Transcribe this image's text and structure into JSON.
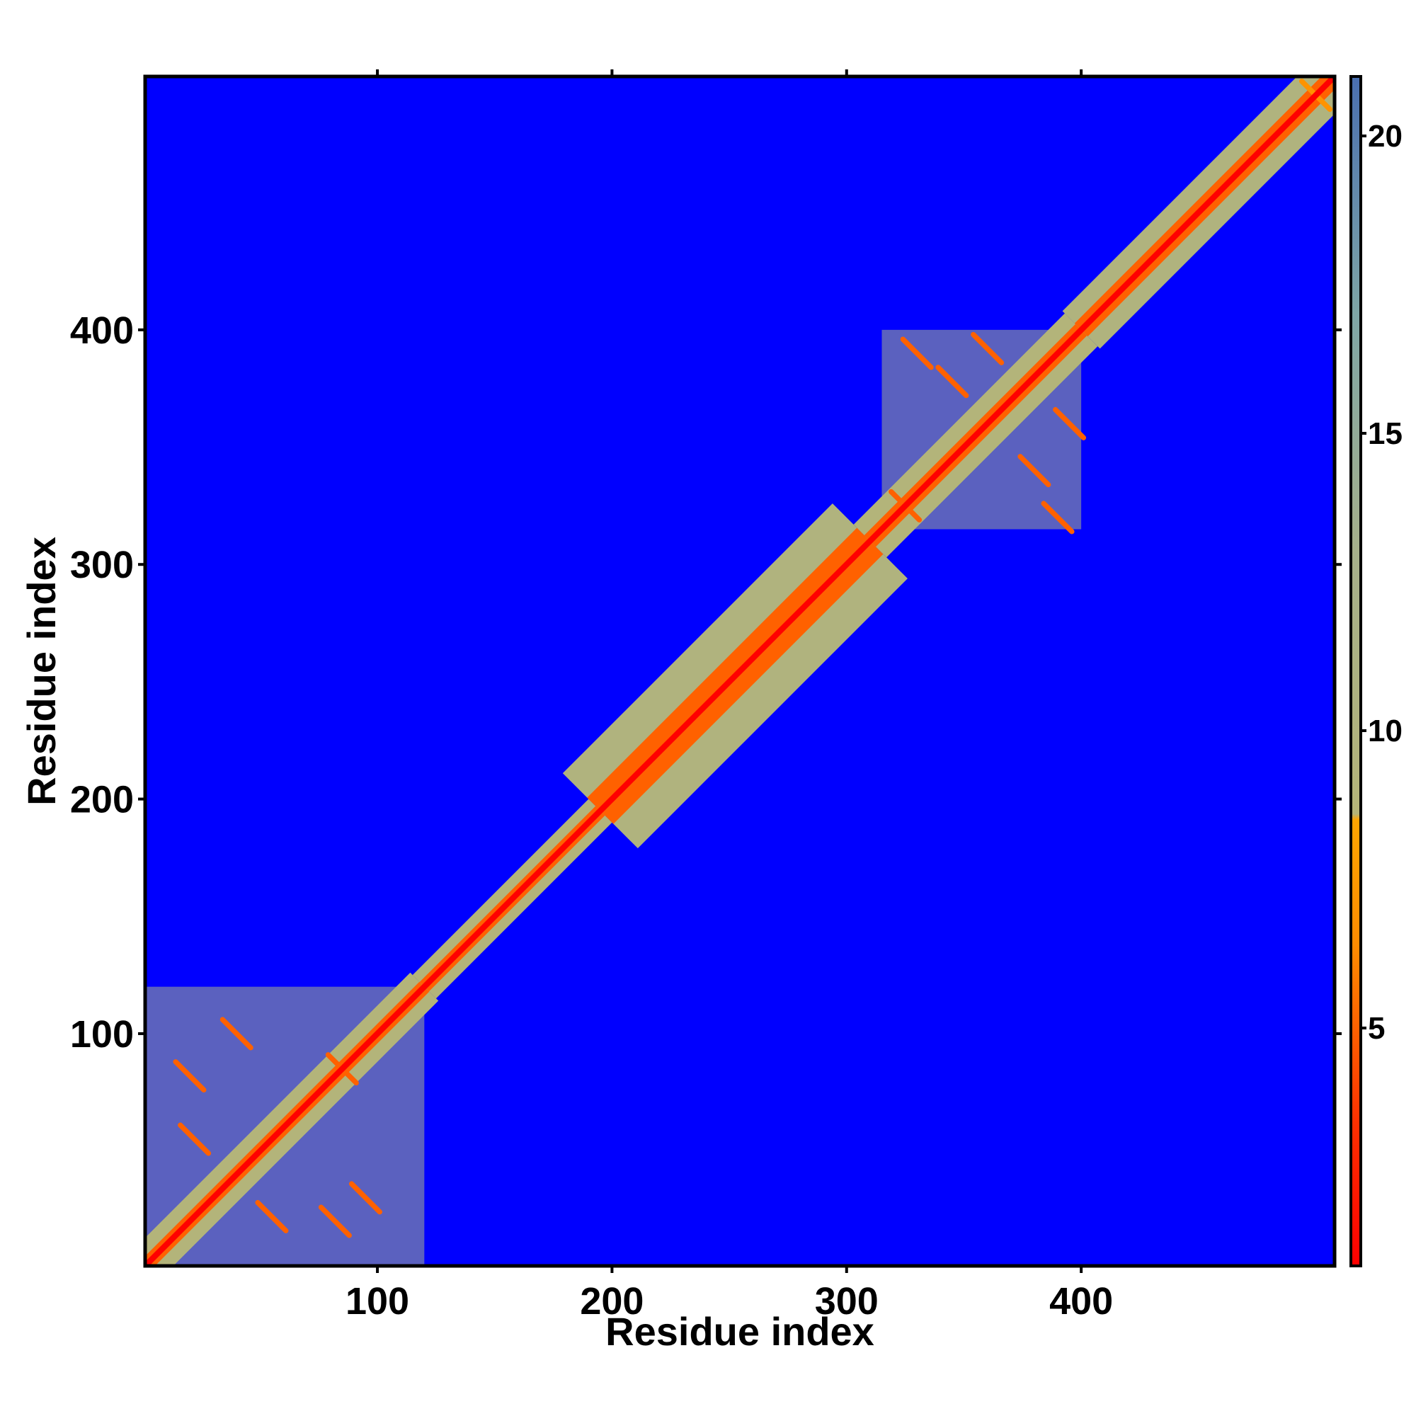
{
  "chart_data": {
    "type": "heatmap",
    "xlabel": "Residue index",
    "ylabel": "Residue index",
    "xlim": [
      1,
      508
    ],
    "ylim": [
      1,
      508
    ],
    "x_ticks": [
      100,
      200,
      300,
      400
    ],
    "x_tick_labels": [
      "100",
      "200",
      "300",
      "400"
    ],
    "y_ticks": [
      100,
      200,
      300,
      400
    ],
    "y_tick_labels": [
      "100",
      "200",
      "300",
      "400"
    ],
    "colorbar": {
      "range": [
        1,
        21
      ],
      "ticks": [
        5,
        10,
        15,
        20
      ],
      "tick_labels": [
        "5",
        "10",
        "15",
        "20"
      ],
      "colors": {
        "low": "#ff0000",
        "mid_low": "#ff8c00",
        "mid": "#b4b478",
        "mid_high": "#7ea6a6",
        "high": "#4a6fb0"
      }
    },
    "background_color": "#0000ff",
    "diagonal_value": 1,
    "bands": [
      {
        "start": 1,
        "end": 120,
        "halfwidth": 6,
        "value": 9
      },
      {
        "start": 120,
        "end": 195,
        "halfwidth": 5,
        "value": 9
      },
      {
        "start": 195,
        "end": 310,
        "halfwidth": 16,
        "value": 10
      },
      {
        "start": 310,
        "end": 400,
        "halfwidth": 7,
        "value": 9
      },
      {
        "start": 400,
        "end": 508,
        "halfwidth": 8,
        "value": 10
      }
    ],
    "blocks": [
      {
        "x": [
          1,
          120
        ],
        "y": [
          1,
          120
        ],
        "value": 13
      },
      {
        "x": [
          315,
          400
        ],
        "y": [
          315,
          400
        ],
        "value": 13
      }
    ],
    "contacts": [
      {
        "x": 20,
        "y": 82,
        "value": 5
      },
      {
        "x": 22,
        "y": 55,
        "value": 5
      },
      {
        "x": 55,
        "y": 22,
        "value": 5
      },
      {
        "x": 82,
        "y": 20,
        "value": 5
      },
      {
        "x": 85,
        "y": 85,
        "value": 5,
        "cross": true
      },
      {
        "x": 95,
        "y": 30,
        "value": 5
      },
      {
        "x": 40,
        "y": 100,
        "value": 5
      },
      {
        "x": 325,
        "y": 325,
        "value": 5,
        "cross": true
      },
      {
        "x": 330,
        "y": 390,
        "value": 5
      },
      {
        "x": 345,
        "y": 378,
        "value": 5
      },
      {
        "x": 360,
        "y": 392,
        "value": 5
      },
      {
        "x": 390,
        "y": 320,
        "value": 5
      },
      {
        "x": 380,
        "y": 340,
        "value": 5
      },
      {
        "x": 395,
        "y": 360,
        "value": 5
      },
      {
        "x": 500,
        "y": 500,
        "value": 7,
        "cross": true
      }
    ]
  }
}
